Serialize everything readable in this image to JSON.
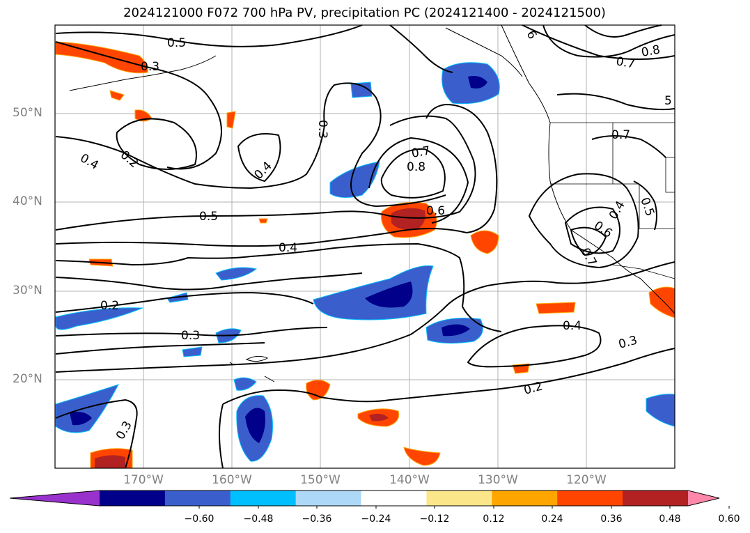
{
  "title": "2024121000 F072 700 hPa PV, precipitation PC (2024121400 - 2024121500)",
  "map": {
    "lat_labels": [
      {
        "text": "50°N",
        "lat": 50
      },
      {
        "text": "40°N",
        "lat": 40
      },
      {
        "text": "30°N",
        "lat": 30
      },
      {
        "text": "20°N",
        "lat": 20
      }
    ],
    "lon_labels": [
      {
        "text": "170°W",
        "lon": -170
      },
      {
        "text": "160°W",
        "lon": -160
      },
      {
        "text": "150°W",
        "lon": -150
      },
      {
        "text": "140°W",
        "lon": -140
      },
      {
        "text": "130°W",
        "lon": -130
      },
      {
        "text": "120°W",
        "lon": -120
      }
    ],
    "extent": {
      "lon_min": -180,
      "lon_max": -110,
      "lat_min": 10,
      "lat_max": 60
    },
    "contour_labels": [
      "0.5",
      "0.3",
      "0.2",
      "0.4",
      "0.3",
      "0.4",
      "0.7",
      "0.8",
      "0.6",
      "0.5",
      "0.4",
      "0.2",
      "0.3",
      "0.4",
      "0.3",
      "0.2",
      "0.3",
      "0.8",
      "0.7",
      "0.7",
      "0.4",
      "0.5",
      "0.6",
      "0.7",
      "6",
      "5"
    ]
  },
  "colorbar": {
    "ticks": [
      "−0.60",
      "−0.48",
      "−0.36",
      "−0.24",
      "−0.12",
      "0.12",
      "0.24",
      "0.36",
      "0.48",
      "0.60"
    ],
    "colors": [
      "#9932cc",
      "#00008b",
      "#3a5fcd",
      "#00bfff",
      "#add8f7",
      "#ffffff",
      "#fce68a",
      "#ffa500",
      "#ff4500",
      "#b22222",
      "#ff88aa"
    ]
  }
}
